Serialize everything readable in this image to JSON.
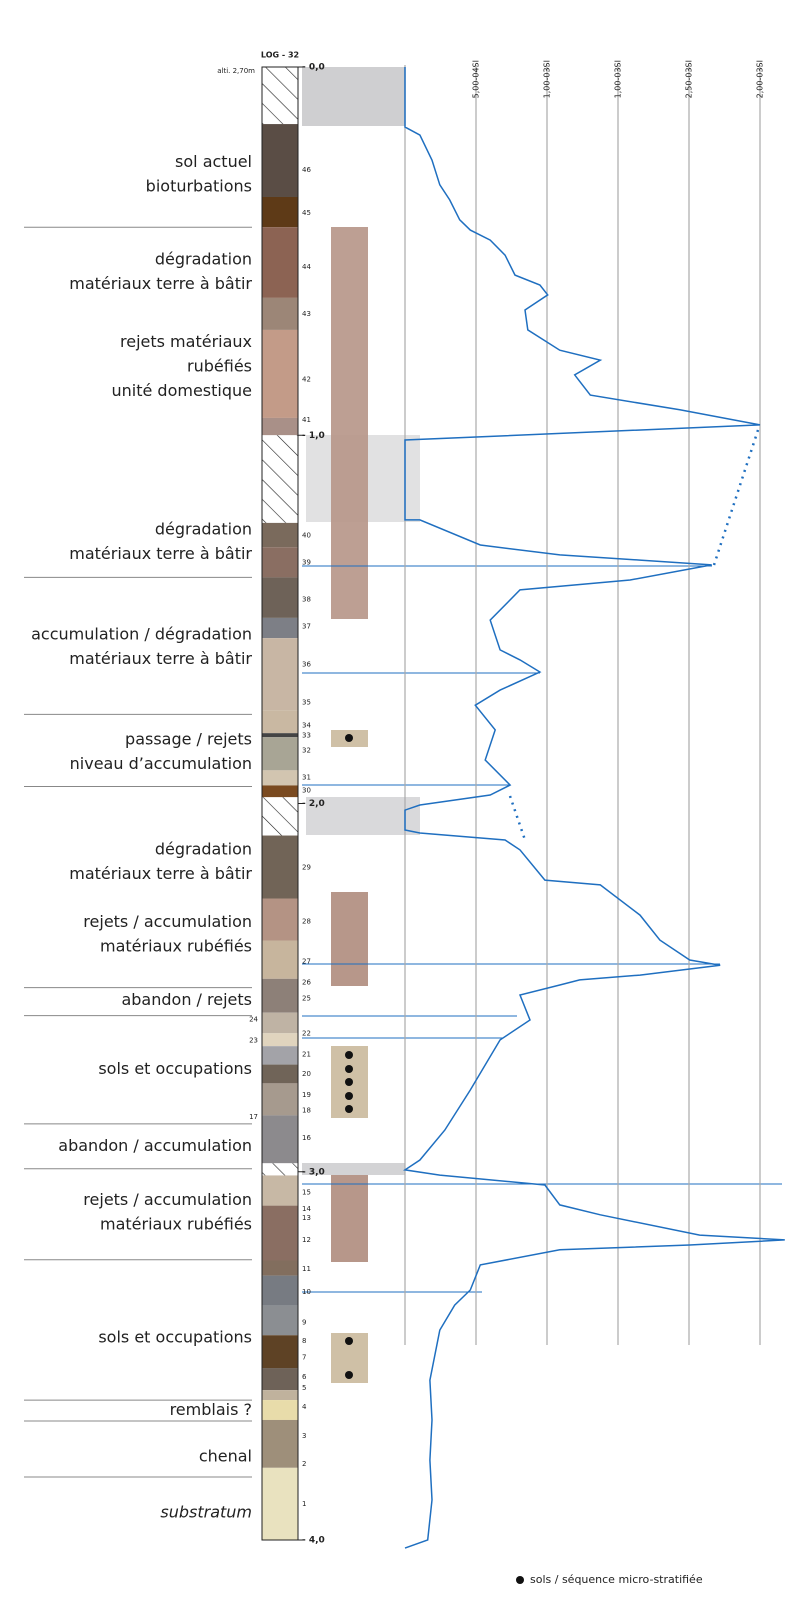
{
  "log_title": "LOG - 32",
  "altitude": "alti. 2,70m",
  "depth_range": [
    0,
    4
  ],
  "depth_labels": [
    {
      "depth": 0,
      "label": "- 0,0"
    },
    {
      "depth": 1,
      "label": "- 1,0"
    },
    {
      "depth": 2,
      "label": "- 2,0"
    },
    {
      "depth": 3,
      "label": "- 3,0"
    },
    {
      "depth": 4,
      "label": "- 4,0"
    }
  ],
  "scale_labels": [
    "5,00-04SI",
    "1,00-03SI",
    "1,00-03SI",
    "2,50-03SI",
    "2,00-03SI"
  ],
  "units": [
    {
      "depth": 0.293,
      "lines": [
        "sol actuel",
        "bioturbations"
      ]
    },
    {
      "depth": 0.557,
      "lines": [
        "dégradation",
        "matériaux terre à bâtir"
      ]
    },
    {
      "depth": 0.815,
      "lines": [
        "rejets matériaux",
        "rubéfiés",
        "unité domestique"
      ]
    },
    {
      "depth": 1.291,
      "lines": [
        "dégradation",
        "matériaux terre à bâtir"
      ]
    },
    {
      "depth": 1.576,
      "lines": [
        "accumulation / dégradation",
        "matériaux terre à bâtir"
      ]
    },
    {
      "depth": 1.861,
      "lines": [
        "passage / rejets",
        "niveau d’accumulation"
      ]
    },
    {
      "depth": 2.16,
      "lines": [
        "dégradation",
        "matériaux terre à bâtir"
      ]
    },
    {
      "depth": 2.356,
      "lines": [
        "rejets / accumulation",
        "matériaux rubéfiés"
      ]
    },
    {
      "depth": 2.535,
      "lines": [
        "abandon / rejets"
      ]
    },
    {
      "depth": 2.723,
      "lines": [
        "sols et occupations"
      ]
    },
    {
      "depth": 2.932,
      "lines": [
        "abandon / accumulation"
      ]
    },
    {
      "depth": 3.111,
      "lines": [
        "rejets / accumulation",
        "matériaux rubéfiés"
      ]
    },
    {
      "depth": 3.451,
      "lines": [
        "sols et occupations"
      ]
    },
    {
      "depth": 3.649,
      "lines": [
        "remblais ?"
      ]
    },
    {
      "depth": 3.774,
      "lines": [
        "chenal"
      ]
    },
    {
      "depth": 3.927,
      "lines": [
        "substratum"
      ],
      "italic": true
    }
  ],
  "boundaries": [
    0.435,
    1.386,
    1.758,
    1.954,
    2.5,
    2.576,
    2.87,
    2.992,
    3.239,
    3.62,
    3.677,
    3.829
  ],
  "layers": [
    {
      "top": 0,
      "color": "hatch"
    },
    {
      "top": 0.155,
      "color": "#5a4d45"
    },
    {
      "top": 0.353,
      "color": "#5e3a17"
    },
    {
      "top": 0.435,
      "color": "#8c6353"
    },
    {
      "top": 0.627,
      "color": "#9c8677"
    },
    {
      "top": 0.714,
      "color": "#c39b88"
    },
    {
      "top": 0.953,
      "color": "#a99088"
    },
    {
      "top": 1.0,
      "color": "hatch"
    },
    {
      "top": 1.238,
      "color": "#7a6a5c"
    },
    {
      "top": 1.304,
      "color": "#8a6e62"
    },
    {
      "top": 1.386,
      "color": "#6e6258"
    },
    {
      "top": 1.496,
      "color": "#7d7f86"
    },
    {
      "top": 1.551,
      "color": "#c8b6a4"
    },
    {
      "top": 1.747,
      "color": "#c9b8a2"
    },
    {
      "top": 1.809,
      "color": "#444444"
    },
    {
      "top": 1.82,
      "color": "#a8a595"
    },
    {
      "top": 1.91,
      "color": "#d2c5b0"
    },
    {
      "top": 1.951,
      "color": "#7a4a20"
    },
    {
      "top": 1.983,
      "color": "hatch"
    },
    {
      "top": 2.087,
      "color": "#716457"
    },
    {
      "top": 2.258,
      "color": "#b49384"
    },
    {
      "top": 2.372,
      "color": "#c7b59d"
    },
    {
      "top": 2.476,
      "color": "#8d8078"
    },
    {
      "top": 2.568,
      "color": "#bfb3a4"
    },
    {
      "top": 2.624,
      "color": "#e0d4be"
    },
    {
      "top": 2.659,
      "color": "#a3a3a8"
    },
    {
      "top": 2.709,
      "color": "#706458"
    },
    {
      "top": 2.76,
      "color": "#a69a8e"
    },
    {
      "top": 2.847,
      "color": "#8c8a8d"
    },
    {
      "top": 2.977,
      "color": "hatch"
    },
    {
      "top": 3.01,
      "color": "#c7b8a5"
    },
    {
      "top": 3.092,
      "color": "#8a6e62"
    },
    {
      "top": 3.241,
      "color": "#826e5e"
    },
    {
      "top": 3.282,
      "color": "#777b82"
    },
    {
      "top": 3.363,
      "color": "#8b8e92"
    },
    {
      "top": 3.444,
      "color": "#5e4225"
    },
    {
      "top": 3.533,
      "color": "#6e6258"
    },
    {
      "top": 3.593,
      "color": "#c0b29d"
    },
    {
      "top": 3.62,
      "color": "#e8dcaa"
    },
    {
      "top": 3.674,
      "color": "#9e8f7a"
    },
    {
      "top": 3.804,
      "color": "#e9e2bf"
    }
  ],
  "layer_numbers": [
    {
      "number": 46,
      "depth": 0.28
    },
    {
      "number": 45,
      "depth": 0.397
    },
    {
      "number": 44,
      "depth": 0.543
    },
    {
      "number": 43,
      "depth": 0.671
    },
    {
      "number": 42,
      "depth": 0.848
    },
    {
      "number": 41,
      "depth": 0.959
    },
    {
      "number": 40,
      "depth": 1.272
    },
    {
      "number": 39,
      "depth": 1.345
    },
    {
      "number": 38,
      "depth": 1.446
    },
    {
      "number": 37,
      "depth": 1.519
    },
    {
      "number": 36,
      "depth": 1.622
    },
    {
      "number": 35,
      "depth": 1.726
    },
    {
      "number": 34,
      "depth": 1.788
    },
    {
      "number": 33,
      "depth": 1.815
    },
    {
      "number": 32,
      "depth": 1.856
    },
    {
      "number": 31,
      "depth": 1.929
    },
    {
      "number": 30,
      "depth": 1.965
    },
    {
      "number": 29,
      "depth": 2.174
    },
    {
      "number": 28,
      "depth": 2.321
    },
    {
      "number": 27,
      "depth": 2.429
    },
    {
      "number": 26,
      "depth": 2.486
    },
    {
      "number": 25,
      "depth": 2.53
    },
    {
      "number": 24,
      "depth": 2.587,
      "left": true
    },
    {
      "number": 22,
      "depth": 2.625
    },
    {
      "number": 23,
      "depth": 2.644,
      "left": true
    },
    {
      "number": 21,
      "depth": 2.682
    },
    {
      "number": 20,
      "depth": 2.734
    },
    {
      "number": 19,
      "depth": 2.791
    },
    {
      "number": 18,
      "depth": 2.834
    },
    {
      "number": 17,
      "depth": 2.851,
      "left": true
    },
    {
      "number": 16,
      "depth": 2.908
    },
    {
      "number": 15,
      "depth": 3.057
    },
    {
      "number": 14,
      "depth": 3.101
    },
    {
      "number": 13,
      "depth": 3.125
    },
    {
      "number": 12,
      "depth": 3.185
    },
    {
      "number": 11,
      "depth": 3.264
    },
    {
      "number": 10,
      "depth": 3.326
    },
    {
      "number": 9,
      "depth": 3.41
    },
    {
      "number": 8,
      "depth": 3.459
    },
    {
      "number": 7,
      "depth": 3.505
    },
    {
      "number": 6,
      "depth": 3.557
    },
    {
      "number": 5,
      "depth": 3.587
    },
    {
      "number": 4,
      "depth": 3.639
    },
    {
      "number": 3,
      "depth": 3.717
    },
    {
      "number": 2,
      "depth": 3.793
    },
    {
      "number": 1,
      "depth": 3.902
    }
  ],
  "curve": {
    "color": "#1f6fc0",
    "depth": [
      0,
      0.163,
      0.185,
      0.253,
      0.32,
      0.361,
      0.415,
      0.443,
      0.47,
      0.511,
      0.565,
      0.592,
      0.619,
      0.66,
      0.714,
      0.769,
      0.796,
      0.836,
      0.891,
      0.931,
      0.972,
      1.013,
      1.23,
      1.23,
      1.298,
      1.325,
      1.339,
      1.352,
      1.393,
      1.42,
      1.502,
      1.583,
      1.61,
      1.643,
      1.692,
      1.733,
      1.8,
      1.882,
      1.95,
      1.977,
      2.004,
      2.018,
      2.072,
      2.08,
      2.099,
      2.126,
      2.208,
      2.221,
      2.303,
      2.371,
      2.425,
      2.439,
      2.466,
      2.479,
      2.493,
      2.52,
      2.588,
      2.642,
      2.778,
      2.887,
      2.968,
      2.995,
      3.009,
      3.036,
      3.09,
      3.117,
      3.172,
      3.185,
      3.199,
      3.212,
      3.253,
      3.321,
      3.362,
      3.43,
      3.566,
      3.674,
      3.783,
      3.891,
      4.0,
      4.022
    ],
    "reading": [
      0,
      0,
      0.21,
      0.38,
      0.49,
      0.63,
      0.77,
      0.92,
      1.2,
      1.41,
      1.55,
      1.9,
      2.01,
      1.69,
      1.73,
      2.18,
      2.75,
      2.39,
      2.61,
      3.87,
      5,
      0,
      0,
      0.21,
      1.06,
      2.18,
      3.31,
      4.32,
      3.17,
      1.62,
      1.2,
      1.34,
      1.62,
      1.9,
      1.34,
      0.99,
      1.27,
      1.13,
      1.48,
      1.2,
      0.21,
      0,
      0,
      0.21,
      1.41,
      1.62,
      1.97,
      2.75,
      3.31,
      3.59,
      4.01,
      4.44,
      3.31,
      2.46,
      2.18,
      1.62,
      1.76,
      1.34,
      0.92,
      0.56,
      0.21,
      0,
      0.49,
      1.97,
      2.18,
      2.75,
      4.15,
      5.35,
      4.01,
      2.18,
      1.06,
      0.92,
      0.7,
      0.49,
      0.35,
      0.38,
      0.35,
      0.38,
      0.32,
      0
    ]
  },
  "legend": "sols / séquence micro-stratifiée"
}
